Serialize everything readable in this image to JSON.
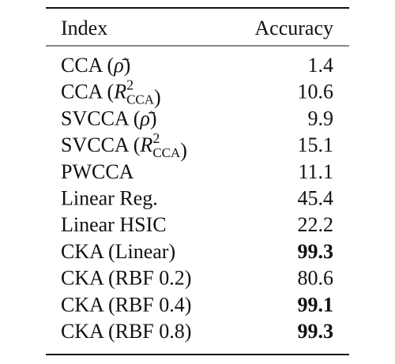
{
  "table": {
    "columns": [
      "Index",
      "Accuracy"
    ],
    "rows": [
      {
        "index": [
          "CCA (",
          {
            "math": "ρ̄"
          },
          ")"
        ],
        "accuracy": 1.4,
        "bold": false
      },
      {
        "index": [
          "CCA (",
          {
            "math": "R",
            "sup": "2",
            "sub": "CCA"
          },
          ")"
        ],
        "accuracy": 10.6,
        "bold": false
      },
      {
        "index": [
          "SVCCA (",
          {
            "math": "ρ̄"
          },
          ")"
        ],
        "accuracy": 9.9,
        "bold": false
      },
      {
        "index": [
          "SVCCA (",
          {
            "math": "R",
            "sup": "2",
            "sub": "CCA"
          },
          ")"
        ],
        "accuracy": 15.1,
        "bold": false
      },
      {
        "index": [
          "PWCCA"
        ],
        "accuracy": 11.1,
        "bold": false
      },
      {
        "index": [
          "Linear Reg."
        ],
        "accuracy": 45.4,
        "bold": false
      },
      {
        "index": [
          "Linear HSIC"
        ],
        "accuracy": 22.2,
        "bold": false
      },
      {
        "index": [
          "CKA (Linear)"
        ],
        "accuracy": 99.3,
        "bold": true
      },
      {
        "index": [
          "CKA (RBF 0.2)"
        ],
        "accuracy": 80.6,
        "bold": false
      },
      {
        "index": [
          "CKA (RBF 0.4)"
        ],
        "accuracy": 99.1,
        "bold": true
      },
      {
        "index": [
          "CKA (RBF 0.8)"
        ],
        "accuracy": 99.3,
        "bold": true
      }
    ]
  }
}
